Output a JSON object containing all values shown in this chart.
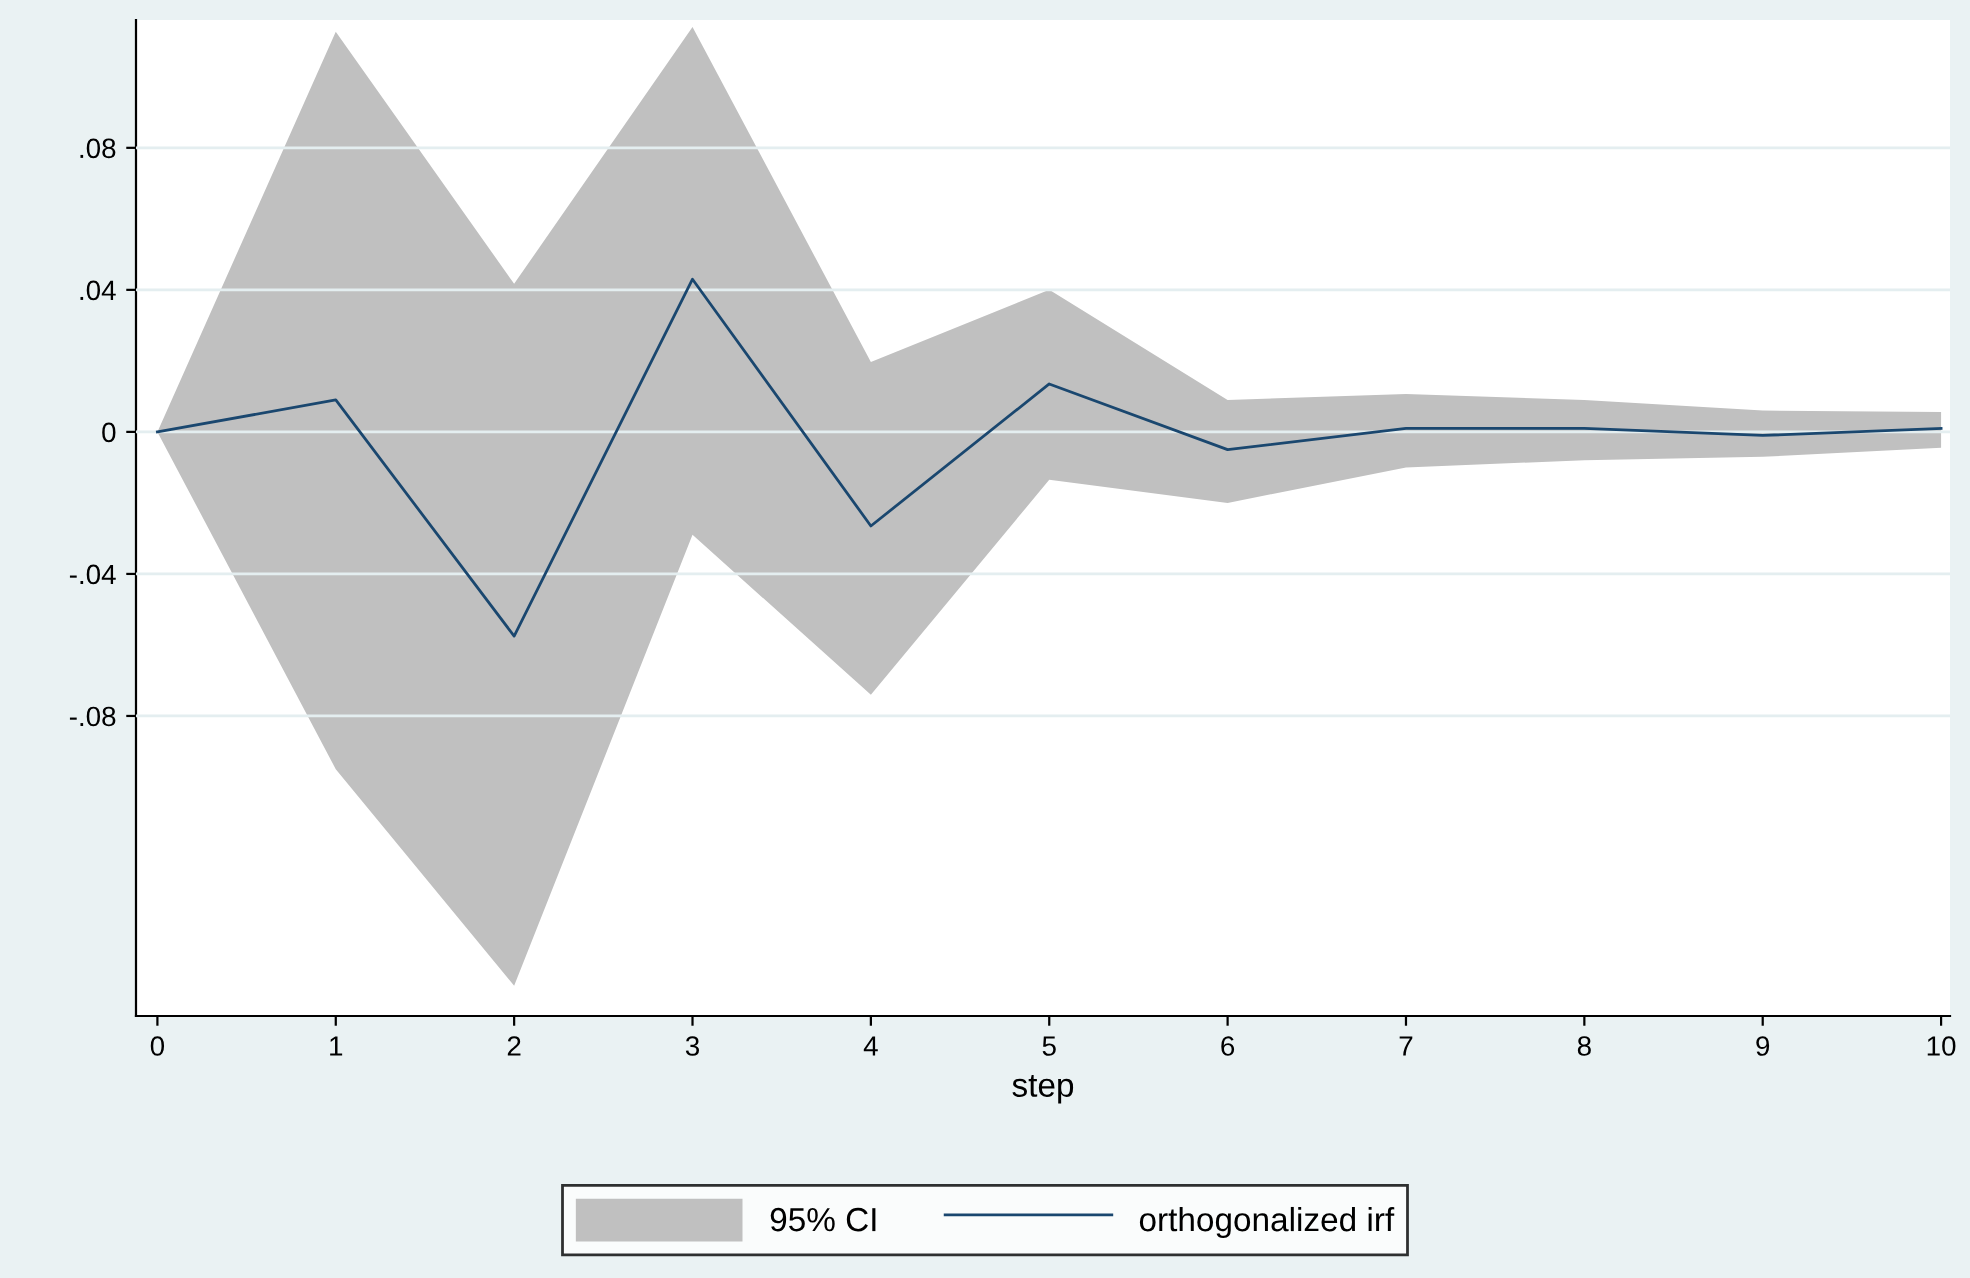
{
  "chart_data": {
    "type": "line",
    "xlabel": "step",
    "x": [
      0,
      1,
      2,
      3,
      4,
      5,
      6,
      7,
      8,
      9,
      10
    ],
    "series": [
      {
        "name": "orthogonalized irf",
        "color": "#1a476f",
        "values": [
          0,
          0.009,
          -0.0575,
          0.043,
          -0.0265,
          0.0135,
          -0.005,
          0.001,
          0.001,
          -0.001,
          0.001
        ],
        "lower": [
          0,
          -0.095,
          -0.156,
          -0.029,
          -0.074,
          -0.0135,
          -0.02,
          -0.01,
          -0.008,
          -0.007,
          -0.0045
        ],
        "upper": [
          0,
          0.1127,
          0.0417,
          0.114,
          0.0197,
          0.04,
          0.009,
          0.0107,
          0.009,
          0.006,
          0.0056
        ]
      }
    ],
    "annotations": [
      "95% CI"
    ],
    "xlim": [
      -0.12,
      10.05
    ],
    "ylim": [
      -0.1645,
      0.116
    ],
    "xticks": [
      0,
      1,
      2,
      3,
      4,
      5,
      6,
      7,
      8,
      9,
      10
    ],
    "yticks": [
      {
        "value": -0.08,
        "label": "-.08"
      },
      {
        "value": -0.04,
        "label": "-.04"
      },
      {
        "value": 0,
        "label": "0"
      },
      {
        "value": 0.04,
        "label": ".04"
      },
      {
        "value": 0.08,
        "label": ".08"
      }
    ],
    "grid": "y",
    "legend": "bottom",
    "marker": "none",
    "line_style": "solid"
  }
}
